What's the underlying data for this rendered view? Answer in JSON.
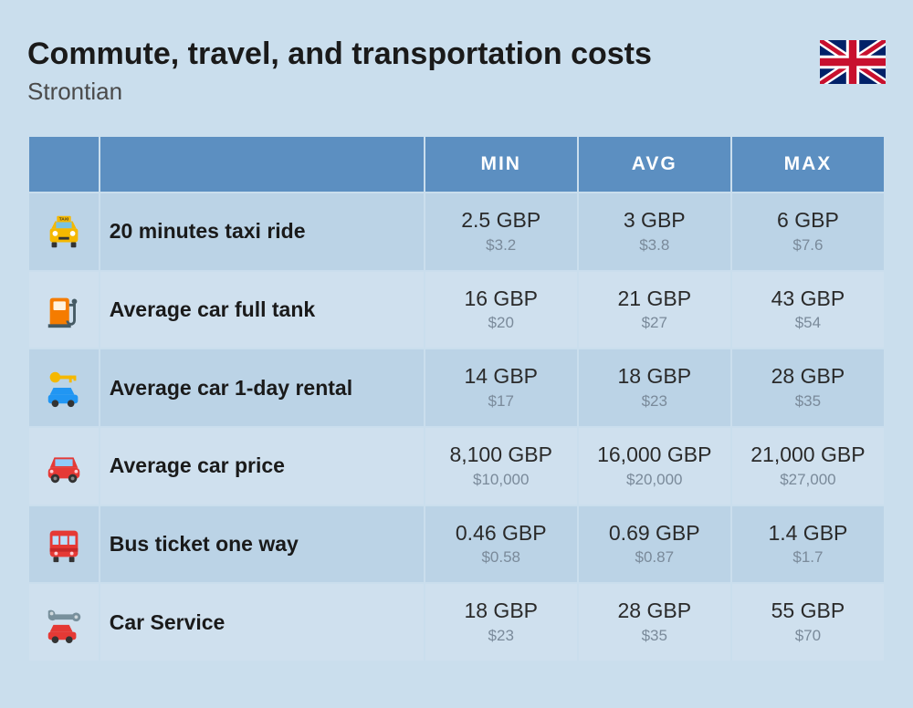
{
  "header": {
    "title": "Commute, travel, and transportation costs",
    "subtitle": "Strontian"
  },
  "colors": {
    "page_bg": "#cadeed",
    "header_bg": "#5c8fc1",
    "header_text": "#ffffff",
    "row_odd_bg": "#bbd3e6",
    "row_even_bg": "#cfe0ee",
    "title_color": "#1a1a1a",
    "subtitle_color": "#4a4a4a",
    "val_main_color": "#2a2a2a",
    "val_sub_color": "#7a8a9a"
  },
  "table": {
    "columns": {
      "min": "MIN",
      "avg": "AVG",
      "max": "MAX"
    },
    "rows": [
      {
        "icon": "taxi",
        "label": "20 minutes taxi ride",
        "min_main": "2.5 GBP",
        "min_sub": "$3.2",
        "avg_main": "3 GBP",
        "avg_sub": "$3.8",
        "max_main": "6 GBP",
        "max_sub": "$7.6"
      },
      {
        "icon": "fuel",
        "label": "Average car full tank",
        "min_main": "16 GBP",
        "min_sub": "$20",
        "avg_main": "21 GBP",
        "avg_sub": "$27",
        "max_main": "43 GBP",
        "max_sub": "$54"
      },
      {
        "icon": "rental",
        "label": "Average car 1-day rental",
        "min_main": "14 GBP",
        "min_sub": "$17",
        "avg_main": "18 GBP",
        "avg_sub": "$23",
        "max_main": "28 GBP",
        "max_sub": "$35"
      },
      {
        "icon": "car",
        "label": "Average car price",
        "min_main": "8,100 GBP",
        "min_sub": "$10,000",
        "avg_main": "16,000 GBP",
        "avg_sub": "$20,000",
        "max_main": "21,000 GBP",
        "max_sub": "$27,000"
      },
      {
        "icon": "bus",
        "label": "Bus ticket one way",
        "min_main": "0.46 GBP",
        "min_sub": "$0.58",
        "avg_main": "0.69 GBP",
        "avg_sub": "$0.87",
        "max_main": "1.4 GBP",
        "max_sub": "$1.7"
      },
      {
        "icon": "service",
        "label": "Car Service",
        "min_main": "18 GBP",
        "min_sub": "$23",
        "avg_main": "28 GBP",
        "avg_sub": "$35",
        "max_main": "55 GBP",
        "max_sub": "$70"
      }
    ]
  }
}
